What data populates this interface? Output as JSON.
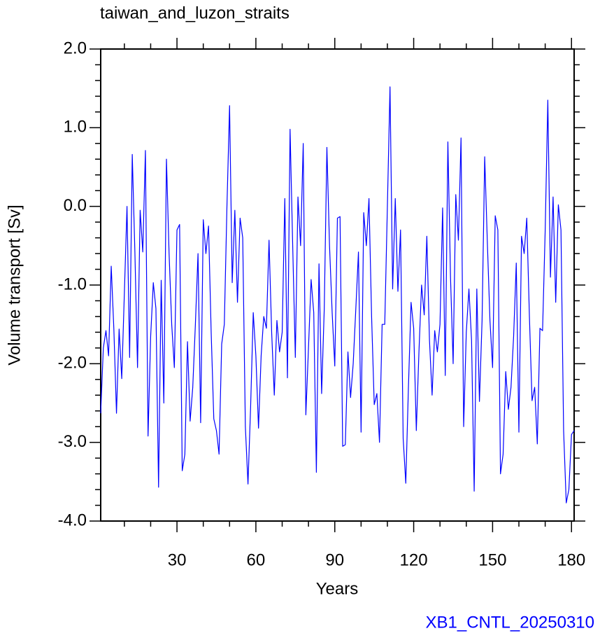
{
  "chart_data": {
    "type": "line",
    "title": "taiwan_and_luzon_straits",
    "xlabel": "Years",
    "ylabel": "Volume transport [Sv]",
    "footer": "XB1_CNTL_20250310",
    "x": [
      1,
      2,
      3,
      4,
      5,
      6,
      7,
      8,
      9,
      10,
      11,
      12,
      13,
      14,
      15,
      16,
      17,
      18,
      19,
      20,
      21,
      22,
      23,
      24,
      25,
      26,
      27,
      28,
      29,
      30,
      31,
      32,
      33,
      34,
      35,
      36,
      37,
      38,
      39,
      40,
      41,
      42,
      43,
      44,
      45,
      46,
      47,
      48,
      49,
      50,
      51,
      52,
      53,
      54,
      55,
      56,
      57,
      58,
      59,
      60,
      61,
      62,
      63,
      64,
      65,
      66,
      67,
      68,
      69,
      70,
      71,
      72,
      73,
      74,
      75,
      76,
      77,
      78,
      79,
      80,
      81,
      82,
      83,
      84,
      85,
      86,
      87,
      88,
      89,
      90,
      91,
      92,
      93,
      94,
      95,
      96,
      97,
      98,
      99,
      100,
      101,
      102,
      103,
      104,
      105,
      106,
      107,
      108,
      109,
      110,
      111,
      112,
      113,
      114,
      115,
      116,
      117,
      118,
      119,
      120,
      121,
      122,
      123,
      124,
      125,
      126,
      127,
      128,
      129,
      130,
      131,
      132,
      133,
      134,
      135,
      136,
      137,
      138,
      139,
      140,
      141,
      142,
      143,
      144,
      145,
      146,
      147,
      148,
      149,
      150,
      151,
      152,
      153,
      154,
      155,
      156,
      157,
      158,
      159,
      160,
      161,
      162,
      163,
      164,
      165,
      166,
      167,
      168,
      169,
      170,
      171,
      172,
      173,
      174,
      175,
      176,
      177,
      178,
      179,
      180,
      181
    ],
    "series": [
      {
        "color": "#0000ff",
        "values": [
          -2.63,
          -1.8,
          -1.58,
          -1.9,
          -0.76,
          -1.56,
          -2.63,
          -1.56,
          -2.19,
          -1.1,
          0.0,
          -1.92,
          0.66,
          -0.58,
          -2.05,
          -0.05,
          -0.58,
          0.71,
          -2.92,
          -1.65,
          -0.97,
          -1.3,
          -3.57,
          -0.94,
          -2.5,
          0.6,
          -0.6,
          -1.5,
          -2.05,
          -0.3,
          -0.23,
          -3.36,
          -3.15,
          -1.72,
          -2.73,
          -2.3,
          -1.5,
          -0.6,
          -2.75,
          -0.17,
          -0.6,
          -0.25,
          -1.6,
          -2.7,
          -2.85,
          -3.15,
          -1.75,
          -1.5,
          0.0,
          1.28,
          -0.97,
          -0.05,
          -1.22,
          -0.15,
          -0.4,
          -2.8,
          -3.53,
          -2.55,
          -1.35,
          -1.9,
          -2.82,
          -1.9,
          -1.4,
          -1.55,
          -0.43,
          -1.6,
          -2.4,
          -1.45,
          -1.85,
          -1.6,
          0.1,
          -2.18,
          0.98,
          -0.5,
          -1.92,
          0.12,
          -0.5,
          0.8,
          -2.65,
          -1.8,
          -0.93,
          -1.35,
          -3.38,
          -0.73,
          -2.38,
          -1.3,
          0.75,
          -0.5,
          -1.35,
          -2.03,
          -0.15,
          -0.13,
          -3.05,
          -3.03,
          -1.85,
          -2.43,
          -2.0,
          -1.3,
          -0.58,
          -2.87,
          -0.08,
          -0.5,
          0.1,
          -1.4,
          -2.52,
          -2.38,
          -3.0,
          -1.5,
          -1.5,
          0.0,
          1.52,
          -1.05,
          0.1,
          -1.08,
          -0.3,
          -2.95,
          -3.52,
          -2.3,
          -1.22,
          -1.55,
          -2.85,
          -1.85,
          -1.0,
          -1.38,
          -0.38,
          -1.7,
          -2.4,
          -1.58,
          -1.85,
          -1.5,
          -0.02,
          -2.15,
          0.82,
          -0.9,
          -2.0,
          0.15,
          -0.43,
          0.87,
          -2.8,
          -1.6,
          -1.05,
          -1.7,
          -3.62,
          -1.05,
          -2.48,
          -1.45,
          0.63,
          -0.45,
          -1.45,
          -2.05,
          -0.12,
          -0.3,
          -3.4,
          -3.15,
          -2.1,
          -2.58,
          -2.3,
          -1.65,
          -0.72,
          -2.87,
          -0.38,
          -0.6,
          -0.15,
          -1.4,
          -2.47,
          -2.3,
          -3.02,
          -1.55,
          -1.58,
          -0.3,
          1.35,
          -0.9,
          0.12,
          -1.22,
          0.02,
          -0.3,
          -2.85,
          -3.77,
          -3.6,
          -2.9,
          -2.85
        ]
      }
    ],
    "xlim": [
      1,
      181
    ],
    "ylim": [
      -4.0,
      2.0
    ],
    "xticks": [
      30,
      60,
      90,
      120,
      150,
      180
    ],
    "xminorticks": [
      10,
      20,
      40,
      50,
      70,
      80,
      100,
      110,
      130,
      140,
      160,
      170
    ],
    "yticks": [
      {
        "value": -4.0,
        "label": "-4.0"
      },
      {
        "value": -3.0,
        "label": "-3.0"
      },
      {
        "value": -2.0,
        "label": "-2.0"
      },
      {
        "value": -1.0,
        "label": "-1.0"
      },
      {
        "value": 0.0,
        "label": "0.0"
      },
      {
        "value": 1.0,
        "label": "1.0"
      },
      {
        "value": 2.0,
        "label": "2.0"
      }
    ],
    "yminorticks": [
      -3.8,
      -3.6,
      -3.4,
      -3.2,
      -2.8,
      -2.6,
      -2.4,
      -2.2,
      -1.8,
      -1.6,
      -1.4,
      -1.2,
      -0.8,
      -0.6,
      -0.4,
      -0.2,
      0.2,
      0.4,
      0.6,
      0.8,
      1.2,
      1.4,
      1.6,
      1.8
    ],
    "grid": false
  }
}
